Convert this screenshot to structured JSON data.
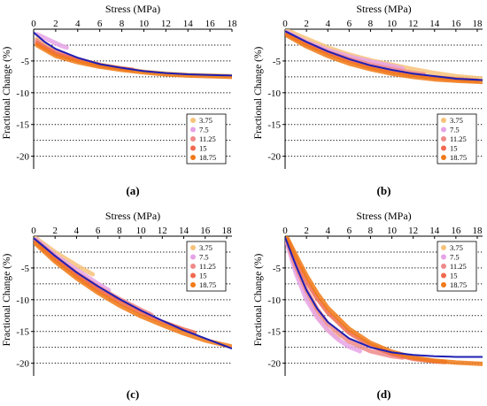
{
  "colors": {
    "fit": "#1f1fb4",
    "s3_75": "#f7c27a",
    "s7_5": "#e6a3e6",
    "s11_25": "#f08a8a",
    "s15": "#f06a50",
    "s18_75": "#f07a18",
    "grid": "#000000"
  },
  "chart_data": [
    {
      "type": "line",
      "panel_label": "(a)",
      "xlabel": "Stress (MPa)",
      "ylabel": "Fractional Change (%)",
      "xlim": [
        0,
        18
      ],
      "ylim": [
        -22,
        0
      ],
      "x_ticks": [
        0,
        2,
        4,
        6,
        8,
        10,
        12,
        14,
        16,
        18
      ],
      "y_ticks": [
        -5,
        -10,
        -15,
        -20
      ],
      "y_gridlines": [
        -2.5,
        -5,
        -7.5,
        -10,
        -12.5,
        -15,
        -17.5,
        -20
      ],
      "legend_position": "center-right",
      "legend": [
        "3.75",
        "7.5",
        "11.25",
        "15",
        "18.75"
      ],
      "series": [
        {
          "name": "3.75",
          "color_key": "s3_75",
          "points": [
            [
              0.3,
              -1.5
            ],
            [
              2,
              -3.5
            ],
            [
              4,
              -4.8
            ],
            [
              6,
              -5.6
            ],
            [
              8,
              -6.2
            ],
            [
              10,
              -6.7
            ],
            [
              12,
              -7.0
            ],
            [
              14,
              -7.2
            ],
            [
              16,
              -7.3
            ],
            [
              18,
              -7.4
            ]
          ]
        },
        {
          "name": "7.5",
          "color_key": "s7_5",
          "points": [
            [
              0.3,
              -0.8
            ],
            [
              1.5,
              -1.8
            ],
            [
              2.5,
              -2.6
            ],
            [
              3,
              -2.9
            ]
          ]
        },
        {
          "name": "11.25",
          "color_key": "s11_25",
          "points": [
            [
              0.3,
              -1.8
            ],
            [
              1,
              -2.8
            ],
            [
              2,
              -3.6
            ],
            [
              3,
              -4.2
            ],
            [
              4,
              -4.7
            ],
            [
              5,
              -5.2
            ],
            [
              6,
              -5.6
            ]
          ]
        },
        {
          "name": "15",
          "color_key": "s15",
          "points": [
            [
              0.3,
              -2.2
            ],
            [
              2,
              -3.9
            ],
            [
              4,
              -4.9
            ],
            [
              6,
              -5.7
            ],
            [
              8,
              -6.2
            ],
            [
              9,
              -6.4
            ]
          ]
        },
        {
          "name": "18.75",
          "color_key": "s18_75",
          "points": [
            [
              0.3,
              -2.5
            ],
            [
              2,
              -4.2
            ],
            [
              4,
              -5.2
            ],
            [
              6,
              -5.9
            ],
            [
              8,
              -6.4
            ],
            [
              10,
              -6.8
            ],
            [
              12,
              -7.1
            ],
            [
              14,
              -7.3
            ],
            [
              16,
              -7.4
            ],
            [
              18,
              -7.5
            ]
          ]
        }
      ],
      "fit": {
        "points": [
          [
            0,
            -0.5
          ],
          [
            1,
            -2.0
          ],
          [
            2,
            -3.1
          ],
          [
            4,
            -4.5
          ],
          [
            6,
            -5.5
          ],
          [
            8,
            -6.1
          ],
          [
            10,
            -6.6
          ],
          [
            12,
            -6.9
          ],
          [
            14,
            -7.1
          ],
          [
            16,
            -7.2
          ],
          [
            18,
            -7.3
          ]
        ]
      }
    },
    {
      "type": "line",
      "panel_label": "(b)",
      "xlabel": "Stress (MPa)",
      "ylabel": "Fractional Change (%)",
      "xlim": [
        0,
        18.5
      ],
      "ylim": [
        -22,
        0
      ],
      "x_ticks": [
        0,
        2,
        4,
        6,
        8,
        10,
        12,
        14,
        16,
        18
      ],
      "y_ticks": [
        -5,
        -10,
        -15,
        -20
      ],
      "y_gridlines": [
        -2.5,
        -5,
        -7.5,
        -10,
        -12.5,
        -15,
        -17.5,
        -20
      ],
      "legend_position": "bottom-right",
      "legend": [
        "3.75",
        "7.5",
        "11.25",
        "15",
        "18.75"
      ],
      "series": [
        {
          "name": "3.75",
          "color_key": "s3_75",
          "points": [
            [
              0.2,
              -0.2
            ],
            [
              2,
              -1.5
            ],
            [
              4,
              -2.9
            ],
            [
              6,
              -4.0
            ],
            [
              8,
              -4.9
            ],
            [
              10,
              -5.6
            ],
            [
              12,
              -6.3
            ],
            [
              14,
              -6.9
            ],
            [
              16,
              -7.4
            ],
            [
              18.5,
              -7.8
            ]
          ]
        },
        {
          "name": "7.5",
          "color_key": "s7_5",
          "points": [
            [
              0.2,
              -0.5
            ],
            [
              2,
              -2.0
            ],
            [
              4,
              -3.3
            ],
            [
              6,
              -4.3
            ],
            [
              8,
              -5.1
            ],
            [
              10,
              -5.8
            ],
            [
              11,
              -6.2
            ]
          ]
        },
        {
          "name": "11.25",
          "color_key": "s11_25",
          "points": [
            [
              0.2,
              -0.7
            ],
            [
              2,
              -2.2
            ],
            [
              4,
              -3.6
            ],
            [
              6,
              -4.7
            ],
            [
              8,
              -5.6
            ],
            [
              10,
              -6.3
            ],
            [
              12,
              -6.9
            ],
            [
              13,
              -7.1
            ]
          ]
        },
        {
          "name": "15",
          "color_key": "s15",
          "points": [
            [
              0.2,
              -0.8
            ],
            [
              2,
              -2.4
            ],
            [
              4,
              -3.8
            ],
            [
              6,
              -5.0
            ],
            [
              8,
              -6.0
            ],
            [
              10,
              -6.7
            ],
            [
              12,
              -7.2
            ],
            [
              14,
              -7.6
            ],
            [
              16,
              -7.9
            ],
            [
              18,
              -8.1
            ]
          ]
        },
        {
          "name": "18.75",
          "color_key": "s18_75",
          "points": [
            [
              0.2,
              -1.0
            ],
            [
              2,
              -2.7
            ],
            [
              4,
              -4.2
            ],
            [
              6,
              -5.4
            ],
            [
              8,
              -6.3
            ],
            [
              10,
              -7.0
            ],
            [
              12,
              -7.5
            ],
            [
              14,
              -7.9
            ],
            [
              16,
              -8.1
            ],
            [
              18.5,
              -8.3
            ]
          ]
        }
      ],
      "fit": {
        "points": [
          [
            0,
            -0.3
          ],
          [
            2,
            -2.0
          ],
          [
            4,
            -3.5
          ],
          [
            6,
            -4.7
          ],
          [
            8,
            -5.7
          ],
          [
            10,
            -6.4
          ],
          [
            12,
            -7.0
          ],
          [
            14,
            -7.4
          ],
          [
            16,
            -7.8
          ],
          [
            18.5,
            -8.0
          ]
        ]
      }
    },
    {
      "type": "line",
      "panel_label": "(c)",
      "xlabel": "Stress (MPa)",
      "ylabel": "Fractional Change (%)",
      "xlim": [
        0,
        18.5
      ],
      "ylim": [
        -22,
        0
      ],
      "x_ticks": [
        0,
        2,
        4,
        6,
        8,
        10,
        12,
        14,
        16,
        18
      ],
      "y_ticks": [
        -5,
        -10,
        -15,
        -20
      ],
      "y_gridlines": [
        -2.5,
        -5,
        -7.5,
        -10,
        -12.5,
        -15,
        -17.5,
        -20
      ],
      "legend_position": "top-right",
      "legend": [
        "3.75",
        "7.5",
        "11.25",
        "15",
        "18.75"
      ],
      "series": [
        {
          "name": "3.75",
          "color_key": "s3_75",
          "points": [
            [
              0.2,
              -0.3
            ],
            [
              2,
              -2.5
            ],
            [
              4,
              -4.6
            ],
            [
              5.5,
              -6.0
            ]
          ]
        },
        {
          "name": "7.5",
          "color_key": "s7_5",
          "points": [
            [
              0.2,
              -0.5
            ],
            [
              2,
              -3.0
            ],
            [
              4,
              -5.3
            ],
            [
              6,
              -7.5
            ],
            [
              7,
              -8.5
            ]
          ]
        },
        {
          "name": "11.25",
          "color_key": "s11_25",
          "points": [
            [
              0.2,
              -0.7
            ],
            [
              2,
              -3.3
            ],
            [
              4,
              -5.8
            ],
            [
              6,
              -8.0
            ],
            [
              8,
              -9.9
            ],
            [
              10,
              -11.6
            ],
            [
              11,
              -12.4
            ]
          ]
        },
        {
          "name": "15",
          "color_key": "s15",
          "points": [
            [
              0.2,
              -0.9
            ],
            [
              2,
              -3.6
            ],
            [
              4,
              -6.2
            ],
            [
              6,
              -8.5
            ],
            [
              8,
              -10.4
            ],
            [
              10,
              -12.1
            ],
            [
              12,
              -13.5
            ],
            [
              14,
              -14.7
            ],
            [
              15,
              -15.2
            ]
          ]
        },
        {
          "name": "18.75",
          "color_key": "s18_75",
          "points": [
            [
              0.2,
              -1.2
            ],
            [
              2,
              -4.0
            ],
            [
              4,
              -6.6
            ],
            [
              6,
              -8.9
            ],
            [
              8,
              -10.9
            ],
            [
              10,
              -12.6
            ],
            [
              12,
              -14.0
            ],
            [
              14,
              -15.3
            ],
            [
              16,
              -16.4
            ],
            [
              18.5,
              -17.4
            ]
          ]
        }
      ],
      "fit": {
        "points": [
          [
            0,
            -0.3
          ],
          [
            2,
            -3.1
          ],
          [
            4,
            -5.7
          ],
          [
            6,
            -7.9
          ],
          [
            8,
            -9.9
          ],
          [
            10,
            -11.7
          ],
          [
            12,
            -13.3
          ],
          [
            14,
            -14.8
          ],
          [
            16,
            -16.1
          ],
          [
            18.5,
            -17.7
          ]
        ]
      }
    },
    {
      "type": "line",
      "panel_label": "(d)",
      "xlabel": "Stress (MPa)",
      "ylabel": "Fractional Change (%)",
      "xlim": [
        0,
        18.5
      ],
      "ylim": [
        -22,
        0
      ],
      "x_ticks": [
        0,
        2,
        4,
        6,
        8,
        10,
        12,
        14,
        16,
        18
      ],
      "y_ticks": [
        -5,
        -10,
        -15,
        -20
      ],
      "y_gridlines": [
        -2.5,
        -5,
        -7.5,
        -10,
        -12.5,
        -15,
        -17.5,
        -20
      ],
      "legend_position": "top-right",
      "legend": [
        "3.75",
        "7.5",
        "11.25",
        "15",
        "18.75"
      ],
      "series": [
        {
          "name": "3.75",
          "color_key": "s3_75",
          "points": [
            [
              0.2,
              -1.0
            ],
            [
              1,
              -5.0
            ],
            [
              2,
              -9.0
            ],
            [
              3,
              -12.5
            ],
            [
              4,
              -14.8
            ],
            [
              5,
              -16.0
            ]
          ]
        },
        {
          "name": "7.5",
          "color_key": "s7_5",
          "points": [
            [
              0.2,
              -1.2
            ],
            [
              1,
              -5.8
            ],
            [
              2,
              -10.0
            ],
            [
              3,
              -12.8
            ],
            [
              4,
              -14.8
            ],
            [
              5,
              -16.3
            ],
            [
              6,
              -17.4
            ],
            [
              7,
              -18.1
            ]
          ]
        },
        {
          "name": "11.25",
          "color_key": "s11_25",
          "points": [
            [
              0.2,
              -0.8
            ],
            [
              1,
              -4.8
            ],
            [
              2,
              -8.5
            ],
            [
              3,
              -11.5
            ],
            [
              4,
              -13.8
            ],
            [
              6,
              -16.6
            ],
            [
              8,
              -18.1
            ],
            [
              10,
              -18.9
            ],
            [
              11,
              -19.1
            ]
          ]
        },
        {
          "name": "15",
          "color_key": "s15",
          "points": [
            [
              0.2,
              -0.5
            ],
            [
              1,
              -3.6
            ],
            [
              2,
              -7.0
            ],
            [
              3,
              -9.8
            ],
            [
              4,
              -12.0
            ],
            [
              6,
              -15.2
            ],
            [
              8,
              -17.2
            ],
            [
              10,
              -18.5
            ],
            [
              12,
              -19.3
            ],
            [
              14,
              -19.7
            ],
            [
              15,
              -19.8
            ]
          ]
        },
        {
          "name": "18.75",
          "color_key": "s18_75",
          "points": [
            [
              0.2,
              -0.3
            ],
            [
              1,
              -3.0
            ],
            [
              2,
              -6.2
            ],
            [
              3,
              -9.0
            ],
            [
              4,
              -11.3
            ],
            [
              6,
              -14.6
            ],
            [
              8,
              -16.8
            ],
            [
              10,
              -18.2
            ],
            [
              12,
              -19.1
            ],
            [
              14,
              -19.6
            ],
            [
              16,
              -19.9
            ],
            [
              18.5,
              -20.1
            ]
          ]
        }
      ],
      "fit": {
        "points": [
          [
            0,
            -0.2
          ],
          [
            1,
            -4.6
          ],
          [
            2,
            -8.5
          ],
          [
            3,
            -11.4
          ],
          [
            4,
            -13.5
          ],
          [
            6,
            -16.1
          ],
          [
            8,
            -17.5
          ],
          [
            10,
            -18.3
          ],
          [
            12,
            -18.7
          ],
          [
            14,
            -18.9
          ],
          [
            16,
            -19.0
          ],
          [
            18.5,
            -19.0
          ]
        ]
      }
    }
  ]
}
